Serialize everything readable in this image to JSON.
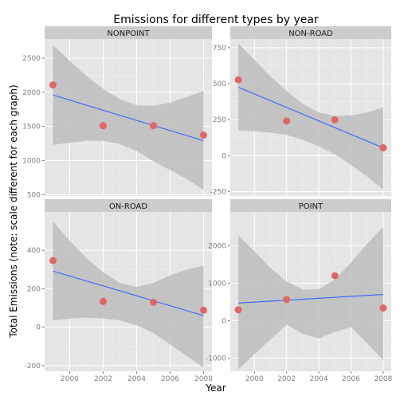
{
  "chart_data": {
    "type": "scatter",
    "title": "Emissions for different types by year",
    "xlabel": "Year",
    "ylabel": "Total Emissions (note: scale different for each graph)",
    "xlim": [
      1998.5,
      2008.5
    ],
    "x_ticks": [
      2000,
      2002,
      2004,
      2006,
      2008
    ],
    "grid": true,
    "point_color": "#e06666",
    "line_color": "#3366ff",
    "band_color": "#bdbdbd",
    "panel_bg": "#e5e5e5",
    "strip_bg": "#cccccc",
    "panels": [
      {
        "name": "NONPOINT",
        "ylim": [
          480,
          2780
        ],
        "y_ticks": [
          500,
          1000,
          1500,
          2000,
          2500
        ],
        "points": [
          {
            "x": 1999,
            "y": 2108
          },
          {
            "x": 2002,
            "y": 1510
          },
          {
            "x": 2005,
            "y": 1509
          },
          {
            "x": 2008,
            "y": 1373
          }
        ],
        "fit": [
          {
            "x": 1999,
            "y": 1960
          },
          {
            "x": 2008,
            "y": 1290
          }
        ],
        "band": {
          "x": [
            1999,
            2000,
            2001,
            2002,
            2003,
            2004,
            2005,
            2006,
            2007,
            2008
          ],
          "upper": [
            2690,
            2460,
            2240,
            2050,
            1900,
            1810,
            1800,
            1850,
            1930,
            2020
          ],
          "lower": [
            1230,
            1260,
            1290,
            1290,
            1240,
            1140,
            990,
            860,
            730,
            570
          ]
        }
      },
      {
        "name": "NON-ROAD",
        "ylim": [
          -280,
          810
        ],
        "y_ticks": [
          -250,
          0,
          250,
          500,
          750
        ],
        "points": [
          {
            "x": 1999,
            "y": 527
          },
          {
            "x": 2002,
            "y": 241
          },
          {
            "x": 2005,
            "y": 249
          },
          {
            "x": 2008,
            "y": 55
          }
        ],
        "fit": [
          {
            "x": 1999,
            "y": 475
          },
          {
            "x": 2008,
            "y": 55
          }
        ],
        "band": {
          "x": [
            1999,
            2000,
            2001,
            2002,
            2003,
            2004,
            2005,
            2006,
            2007,
            2008
          ],
          "upper": [
            780,
            665,
            550,
            450,
            360,
            300,
            275,
            280,
            300,
            335
          ],
          "lower": [
            175,
            170,
            160,
            145,
            110,
            65,
            10,
            -65,
            -145,
            -235
          ]
        }
      },
      {
        "name": "ON-ROAD",
        "ylim": [
          -230,
          600
        ],
        "y_ticks": [
          -200,
          0,
          200,
          400
        ],
        "points": [
          {
            "x": 1999,
            "y": 347
          },
          {
            "x": 2002,
            "y": 134
          },
          {
            "x": 2005,
            "y": 130
          },
          {
            "x": 2008,
            "y": 88
          }
        ],
        "fit": [
          {
            "x": 1999,
            "y": 292
          },
          {
            "x": 2008,
            "y": 60
          }
        ],
        "band": {
          "x": [
            1999,
            2000,
            2001,
            2002,
            2003,
            2004,
            2005,
            2006,
            2007,
            2008
          ],
          "upper": [
            550,
            450,
            360,
            285,
            230,
            210,
            230,
            270,
            300,
            320
          ],
          "lower": [
            35,
            45,
            50,
            45,
            35,
            10,
            -30,
            -90,
            -150,
            -210
          ]
        }
      },
      {
        "name": "POINT",
        "ylim": [
          -1350,
          2900
        ],
        "y_ticks": [
          -1000,
          0,
          1000,
          2000
        ],
        "points": [
          {
            "x": 1999,
            "y": 291
          },
          {
            "x": 2002,
            "y": 564
          },
          {
            "x": 2005,
            "y": 1200
          },
          {
            "x": 2008,
            "y": 338
          }
        ],
        "fit": [
          {
            "x": 1999,
            "y": 470
          },
          {
            "x": 2008,
            "y": 700
          }
        ],
        "band": {
          "x": [
            1999,
            2000,
            2001,
            2002,
            2003,
            2004,
            2005,
            2006,
            2007,
            2008
          ],
          "upper": [
            2270,
            1850,
            1400,
            1050,
            830,
            840,
            1100,
            1550,
            2050,
            2500
          ],
          "lower": [
            -1300,
            -900,
            -500,
            -100,
            -350,
            -470,
            -300,
            -170,
            -600,
            -1050
          ]
        }
      }
    ]
  }
}
